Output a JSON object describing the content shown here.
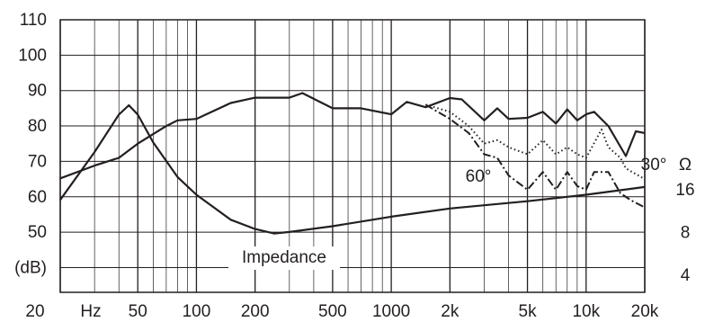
{
  "chart_data": {
    "type": "line",
    "x_unit": "Hz",
    "xlog": true,
    "xlim": [
      20,
      20000
    ],
    "xticks": [
      20,
      50,
      100,
      200,
      500,
      1000,
      {
        "value": 2000,
        "label": "2k"
      },
      {
        "value": 5000,
        "label": "5k"
      },
      {
        "value": 10000,
        "label": "10k"
      },
      {
        "value": 20000,
        "label": "20k"
      }
    ],
    "xgrid_minor": [
      30,
      40,
      60,
      70,
      80,
      90,
      300,
      400,
      600,
      700,
      800,
      900,
      3000,
      4000,
      6000,
      7000,
      8000,
      9000
    ],
    "ylim": [
      33,
      110
    ],
    "yticks": [
      {
        "value": 40,
        "label": "(dB)"
      },
      50,
      60,
      70,
      80,
      90,
      100,
      110
    ],
    "y2log": true,
    "y2lim": [
      3.08,
      256
    ],
    "y2ticks": [
      4,
      8,
      16
    ],
    "y2_label": "Ω",
    "grid": true,
    "series": [
      {
        "color": "#231f20",
        "style": "solid",
        "x": [
          20,
          30,
          40,
          50,
          70,
          80,
          100,
          150,
          200,
          300,
          350,
          500,
          700,
          1000,
          1200,
          1500,
          2000,
          2300,
          3000,
          3500,
          4000,
          5000,
          6000,
          7000,
          8000,
          9000,
          10000,
          11000,
          13000,
          16000,
          18000,
          20000
        ],
        "values": [
          65.2,
          68.8,
          71,
          75,
          80,
          81.6,
          82,
          86.5,
          88,
          88,
          89.3,
          85,
          85,
          83.3,
          86.8,
          85.3,
          87.9,
          87.5,
          81.6,
          85,
          82,
          82.3,
          84,
          80.7,
          84.7,
          81.6,
          83.3,
          84,
          80,
          71.5,
          78.5,
          78
        ]
      },
      {
        "name": "30°",
        "color": "#231f20",
        "style": "dotted",
        "x": [
          1500,
          2000,
          2500,
          3000,
          3500,
          4000,
          5000,
          6000,
          7000,
          8000,
          9000,
          10000,
          12000,
          13000,
          15000,
          16000,
          20000
        ],
        "values": [
          86,
          84,
          80,
          75,
          76,
          74,
          72,
          76,
          72,
          74,
          72,
          71,
          79,
          74,
          71,
          68,
          65
        ]
      },
      {
        "name": "60°",
        "color": "#231f20",
        "style": "dashdot",
        "x": [
          1500,
          2000,
          2500,
          3000,
          3500,
          4000,
          5000,
          6000,
          7000,
          8000,
          9000,
          10000,
          11000,
          13000,
          15000,
          17000,
          20000
        ],
        "values": [
          86,
          82,
          78,
          72,
          71,
          66,
          62,
          67,
          62,
          67,
          63,
          62,
          67,
          67,
          61,
          59,
          57
        ]
      },
      {
        "name": "Impedance",
        "color": "#231f20",
        "style": "solid",
        "axis": "y2",
        "x": [
          20,
          30,
          40,
          45,
          50,
          60,
          80,
          100,
          150,
          200,
          250,
          300,
          500,
          1000,
          2000,
          5000,
          10000,
          20000
        ],
        "values": [
          13.8,
          30,
          55,
          64,
          55,
          35,
          20,
          15,
          10,
          8.6,
          8,
          8.2,
          9,
          10.5,
          12,
          13.5,
          15,
          17
        ]
      }
    ]
  }
}
